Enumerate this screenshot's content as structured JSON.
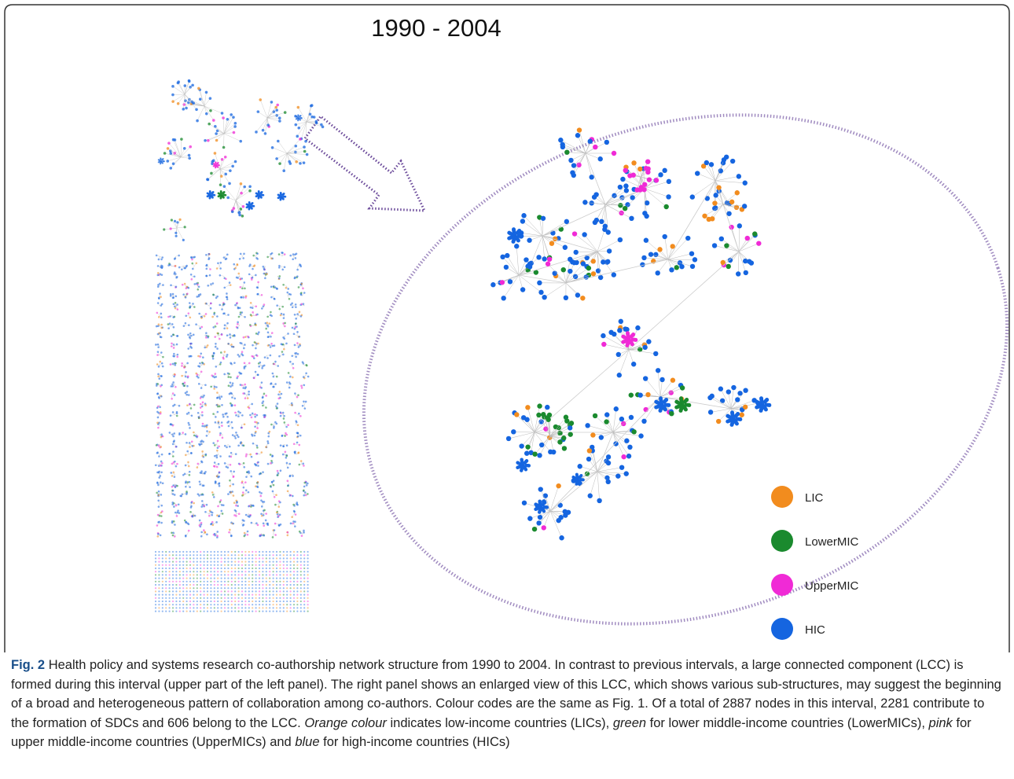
{
  "figure": {
    "title": "1990 - 2004",
    "legend": [
      {
        "label": "LIC",
        "color": "#f28c1e"
      },
      {
        "label": "LowerMIC",
        "color": "#1a8a2e"
      },
      {
        "label": "UpperMIC",
        "color": "#f02ad6"
      },
      {
        "label": "HIC",
        "color": "#1565e0"
      }
    ]
  },
  "caption": {
    "label": "Fig. 2",
    "segments": [
      "Health policy and systems research co-authorship network structure from 1990 to 2004. In contrast to previous intervals, a large connected component (LCC) is formed during this interval (upper part of the left panel). The right panel shows an enlarged view of this LCC, which shows various sub-structures, may suggest the beginning of a broad and heterogeneous pattern of collaboration among co-authors. Colour codes are the same as Fig. 1. Of a total of 2887 nodes in this interval, 2281 contribute to the formation of SDCs and 606 belong to the LCC.",
      "Orange colour",
      "indicates low-income countries (LICs),",
      "green",
      "for lower middle-income countries (LowerMICs),",
      "pink",
      "for upper middle-income countries (UpperMICs) and",
      "blue",
      "for high-income countries (HICs)"
    ]
  }
}
